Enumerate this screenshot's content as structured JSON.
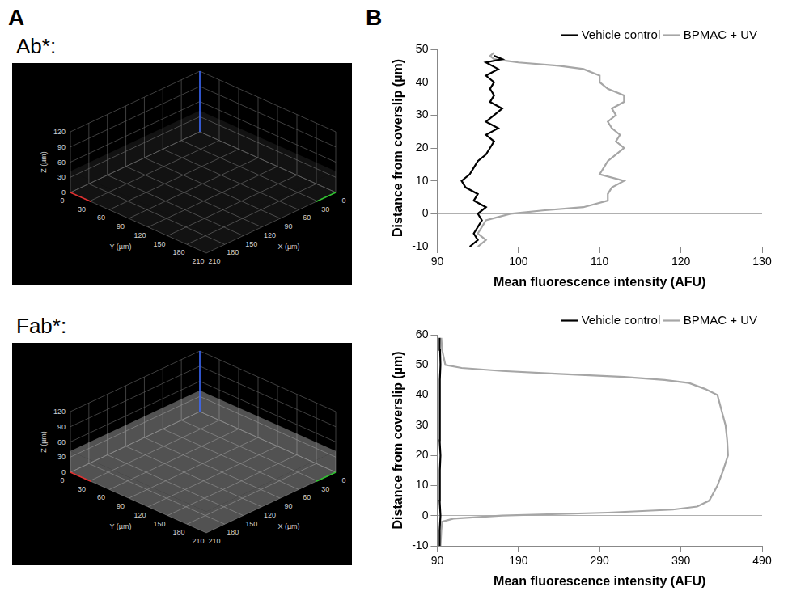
{
  "panel_letters": [
    "A",
    "B"
  ],
  "images": [
    {
      "label": "Ab*:",
      "x_label": "X (µm)",
      "y_label": "Y (µm)",
      "z_label": "Z (µm)",
      "xlim": [
        0,
        210
      ],
      "xticks": [
        0,
        30,
        60,
        90,
        120,
        150,
        180,
        210
      ],
      "ylim": [
        0,
        210
      ],
      "yticks": [
        0,
        30,
        60,
        90,
        120,
        150,
        180,
        210
      ],
      "zlim": [
        0,
        120
      ],
      "zticks": [
        0,
        30,
        60,
        90,
        120
      ]
    },
    {
      "label": "Fab*:",
      "x_label": "X (µm)",
      "y_label": "Y (µm)",
      "z_label": "Z (µm)",
      "xlim": [
        0,
        210
      ],
      "xticks": [
        0,
        30,
        60,
        90,
        120,
        150,
        180,
        210
      ],
      "ylim": [
        0,
        210
      ],
      "yticks": [
        0,
        30,
        60,
        90,
        120,
        150,
        180,
        210
      ],
      "zlim": [
        0,
        120
      ],
      "zticks": [
        0,
        30,
        60,
        90,
        120
      ]
    }
  ],
  "chart_data": [
    {
      "type": "line",
      "x_label": "Mean fluorescence intensity (AFU)",
      "y_label": "Distance from coverslip (µm)",
      "xlim": [
        90,
        130
      ],
      "xticks": [
        90,
        100,
        110,
        120,
        130
      ],
      "ylim": [
        -10,
        50
      ],
      "yticks": [
        -10,
        0,
        10,
        20,
        30,
        40,
        50
      ],
      "legend": "top-right",
      "series": [
        {
          "name": "Vehicle control",
          "color": "#000000",
          "x": [
            94,
            95,
            94.5,
            95,
            95.5,
            95,
            96,
            94.5,
            95,
            93.5,
            93,
            94,
            94.5,
            95,
            96,
            96.5,
            97,
            96,
            97.5,
            96,
            97,
            98,
            96.5,
            97,
            96.5,
            97,
            96,
            97.5,
            96,
            98,
            97
          ],
          "y": [
            -10,
            -8,
            -6,
            -4,
            -2,
            0,
            2,
            4,
            6,
            8,
            10,
            12,
            14,
            16,
            18,
            20,
            22,
            24,
            26,
            28,
            30,
            32,
            34,
            36,
            38,
            40,
            42,
            44,
            46,
            47,
            48
          ]
        },
        {
          "name": "BPMAC + UV",
          "color": "#a6a6a6",
          "x": [
            95,
            96,
            95,
            95.5,
            96,
            99,
            103,
            108,
            111,
            111,
            111.5,
            113,
            110,
            110.5,
            111,
            112,
            113,
            112,
            112.5,
            111.5,
            111,
            112,
            111.5,
            113,
            113,
            111,
            110,
            110,
            108,
            105,
            100,
            97,
            96.5,
            97
          ],
          "y": [
            -10,
            -8,
            -6,
            -4,
            -2,
            0,
            1,
            2,
            4,
            6,
            8,
            10,
            12,
            14,
            16,
            18,
            20,
            22,
            24,
            26,
            28,
            30,
            32,
            34,
            36,
            38,
            40,
            42,
            44,
            45,
            46,
            47,
            48,
            49
          ]
        }
      ]
    },
    {
      "type": "line",
      "x_label": "Mean fluorescence intensity (AFU)",
      "y_label": "Distance from coverslip (µm)",
      "xlim": [
        90,
        490
      ],
      "xticks": [
        90,
        190,
        290,
        390,
        490
      ],
      "ylim": [
        -10,
        60
      ],
      "yticks": [
        -10,
        0,
        10,
        20,
        30,
        40,
        50,
        60
      ],
      "legend": "top-right",
      "series": [
        {
          "name": "Vehicle control",
          "color": "#000000",
          "x": [
            93,
            93,
            94,
            93,
            93.5,
            93,
            94,
            93,
            93.5,
            93,
            93.5,
            93,
            94,
            93.5,
            93
          ],
          "y": [
            -10,
            -5,
            0,
            5,
            10,
            15,
            20,
            25,
            30,
            35,
            40,
            45,
            50,
            55,
            59
          ]
        },
        {
          "name": "BPMAC + UV",
          "color": "#a6a6a6",
          "x": [
            94,
            95,
            96,
            110,
            170,
            300,
            380,
            410,
            425,
            435,
            442,
            448,
            447,
            445,
            440,
            435,
            420,
            400,
            370,
            320,
            240,
            170,
            120,
            100,
            96,
            95
          ],
          "y": [
            -10,
            -5,
            -2,
            -1,
            0,
            1,
            2,
            3,
            5,
            10,
            15,
            20,
            25,
            30,
            35,
            40,
            42,
            44,
            45,
            46,
            47,
            48,
            49,
            50,
            55,
            59
          ]
        }
      ]
    }
  ]
}
